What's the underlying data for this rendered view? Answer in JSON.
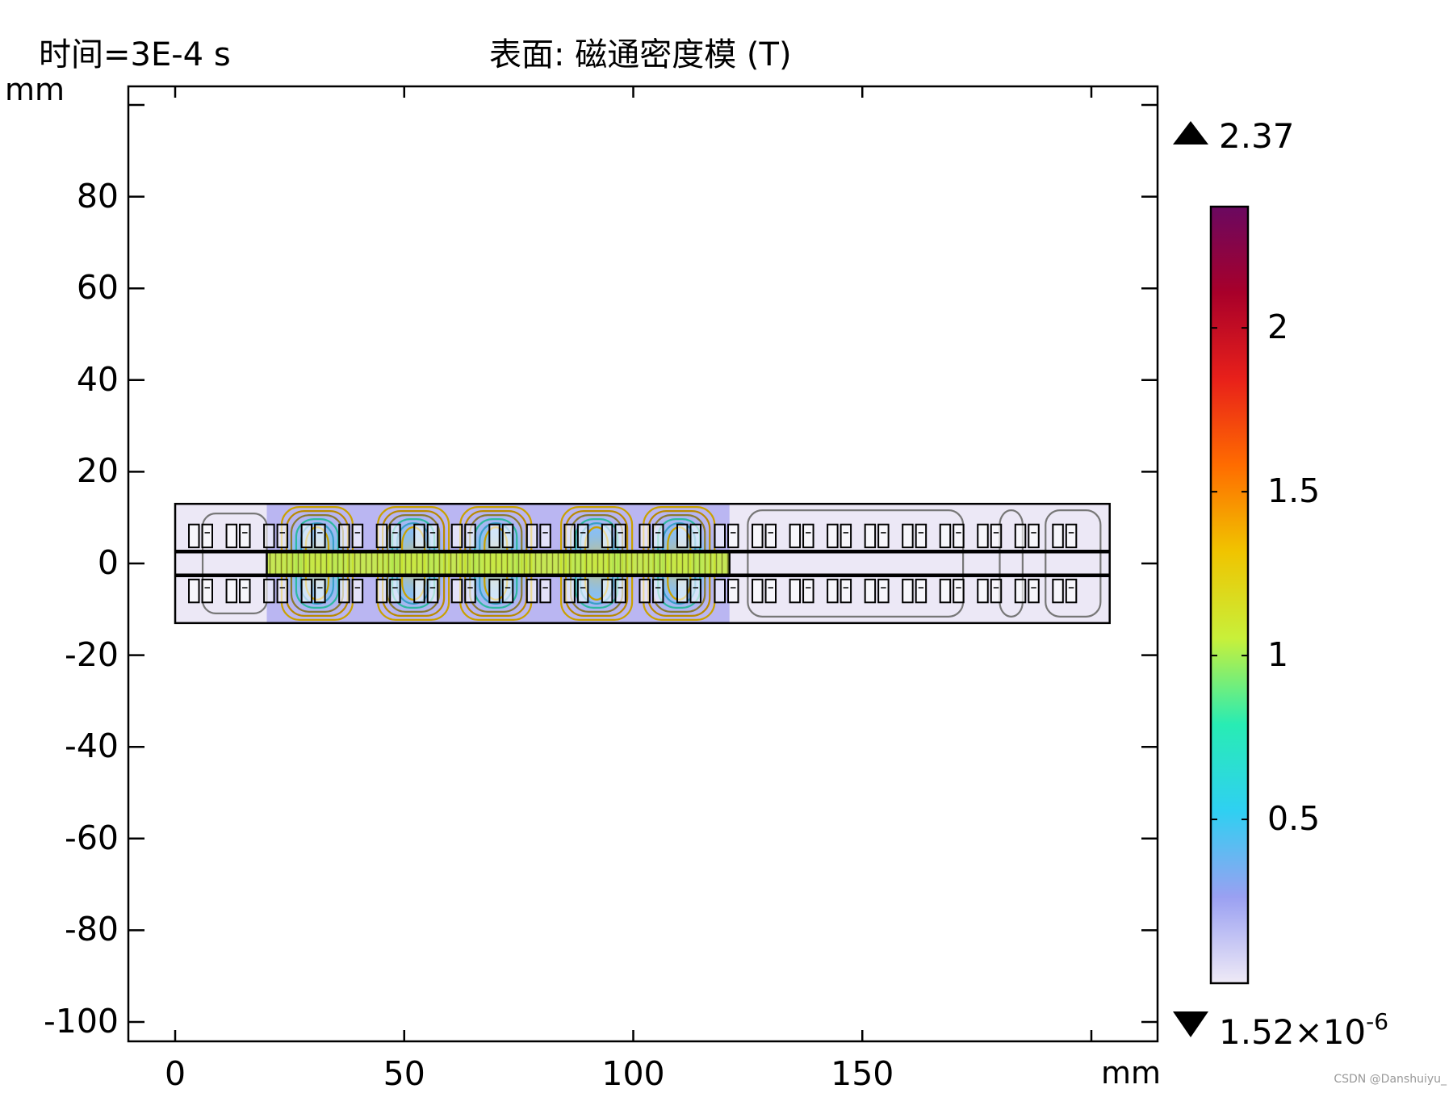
{
  "header": {
    "time_label": "时间=3E-4 s",
    "plot_title": "表面: 磁通密度模 (T)"
  },
  "chart_data": {
    "type": "heatmap",
    "title": "表面: 磁通密度模 (T)",
    "time": "时间=3E-4 s",
    "xlabel": "mm",
    "ylabel": "mm",
    "x_ticks": [
      "0",
      "50",
      "100",
      "150"
    ],
    "y_ticks": [
      "80",
      "60",
      "40",
      "20",
      "0",
      "-20",
      "-40",
      "-60",
      "-80",
      "-100"
    ],
    "xlim": [
      -10,
      215
    ],
    "ylim": [
      -104,
      104
    ],
    "grid": false,
    "geometry": {
      "outer_box": {
        "x": [
          0,
          204
        ],
        "y": [
          -13,
          13
        ]
      },
      "rails_y": [
        2.6,
        -2.6
      ],
      "slot_rows": [
        [
          3.5,
          8.5
        ],
        [
          -8.5,
          -3.5
        ]
      ],
      "slot_x_start": 3,
      "slot_pitch": 8.2,
      "slot_count": 24
    },
    "field_hotspots_x": [
      31,
      52,
      70,
      92,
      110
    ],
    "mover_range_x": [
      20,
      121
    ],
    "colorbar": {
      "min": 1.52e-06,
      "max": 2.37,
      "ticks": [
        "0.5",
        "1",
        "1.5",
        "2"
      ],
      "tick_values": [
        0.5,
        1,
        1.5,
        2
      ],
      "max_label": "2.37",
      "min_label_mantissa": "1.52×10",
      "min_label_exponent": "-6",
      "colormap": [
        "#efeaf6",
        "#9aa0f2",
        "#2fd0f2",
        "#28ecb4",
        "#c8f03a",
        "#f0c400",
        "#ff6c00",
        "#e8201a",
        "#a8002a",
        "#6a0860"
      ]
    }
  },
  "watermark": "CSDN @Danshuiyu_"
}
